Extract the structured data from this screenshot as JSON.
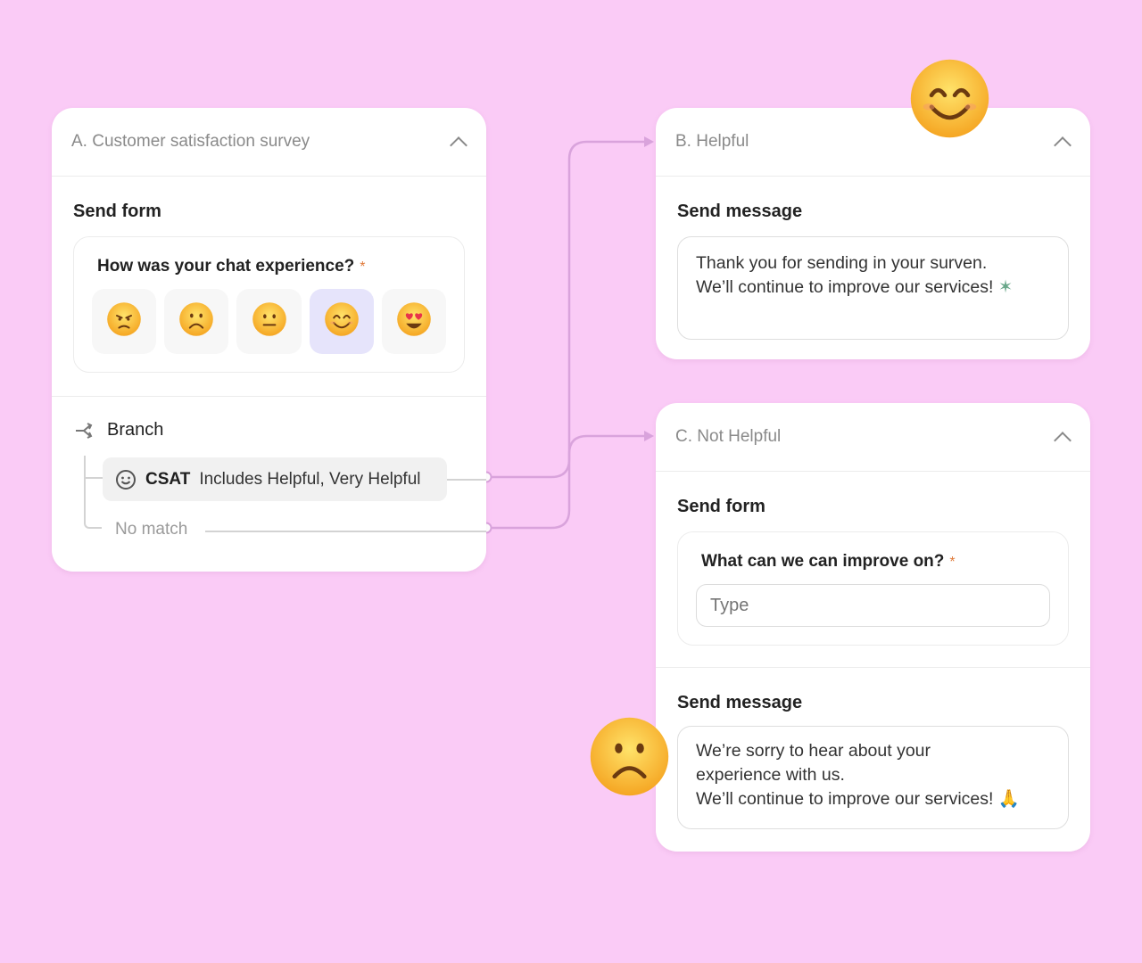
{
  "colors": {
    "background": "#facbf6",
    "connector": "#d9a3dc",
    "selected": "#e6e4fb",
    "required": "#e07a3a"
  },
  "card_a": {
    "title": "A. Customer satisfaction survey",
    "section_title": "Send form",
    "question": "How was your chat experience?",
    "required_mark": "*",
    "options": [
      {
        "icon": "angry-face-icon",
        "selected": false
      },
      {
        "icon": "frowning-face-icon",
        "selected": false
      },
      {
        "icon": "neutral-face-icon",
        "selected": false
      },
      {
        "icon": "smiling-face-icon",
        "selected": true
      },
      {
        "icon": "heart-eyes-face-icon",
        "selected": false
      }
    ],
    "branch_label": "Branch",
    "condition_field": "CSAT",
    "condition_text": "Includes Helpful, Very Helpful",
    "no_match": "No match"
  },
  "card_b": {
    "title": "B. Helpful",
    "section_title": "Send message",
    "message_line1": "Thank you for sending in your surven.",
    "message_line2": "We’ll continue to improve our services!",
    "message_icon": "fairy-icon"
  },
  "card_c": {
    "title": "C. Not Helpful",
    "form_title": "Send form",
    "question": "What can we can improve on?",
    "required_mark": "*",
    "input_placeholder": "Type",
    "message_title": "Send message",
    "message_line1": "We’re sorry to hear about your",
    "message_line2": "experience with us.",
    "message_line3": "We’ll continue to improve our services!",
    "message_icon": "folded-hands-icon"
  }
}
